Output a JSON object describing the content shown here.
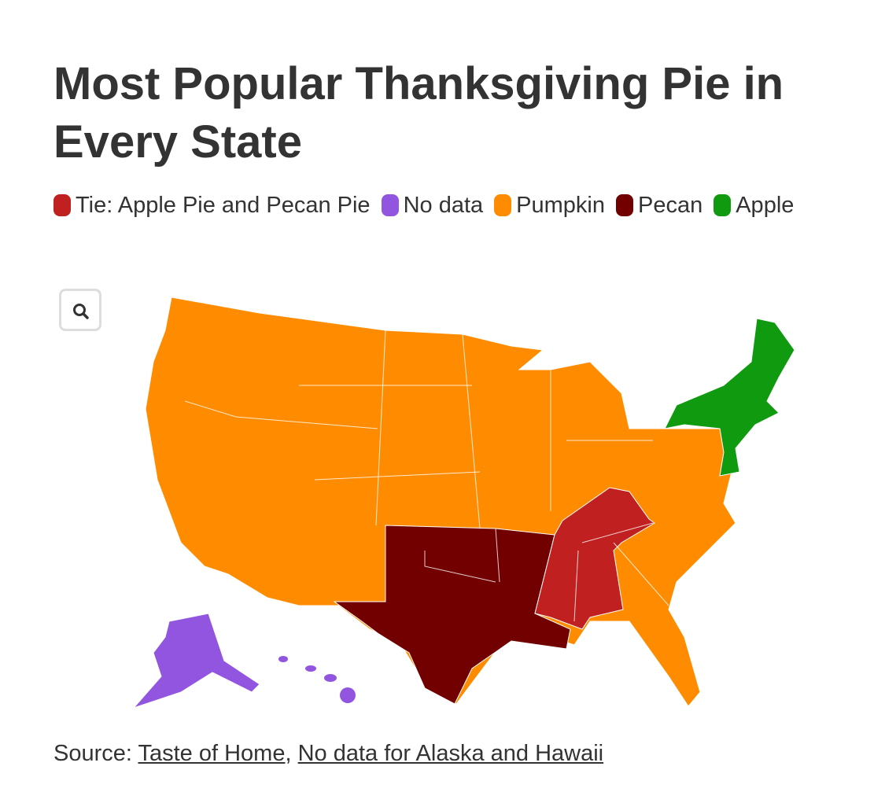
{
  "title": "Most Popular Thanksgiving Pie in Every State",
  "legend": [
    {
      "name": "Tie: Apple Pie and Pecan Pie",
      "color": "#c0201f"
    },
    {
      "name": "No data",
      "color": "#9155e0"
    },
    {
      "name": "Pumpkin",
      "color": "#ff8c00"
    },
    {
      "name": "Pecan",
      "color": "#720000"
    },
    {
      "name": "Apple",
      "color": "#0f9a0f"
    }
  ],
  "source": {
    "label": "Source:",
    "links": [
      "Taste of Home",
      "No data for Alaska and Hawaii"
    ],
    "separator": ","
  }
}
